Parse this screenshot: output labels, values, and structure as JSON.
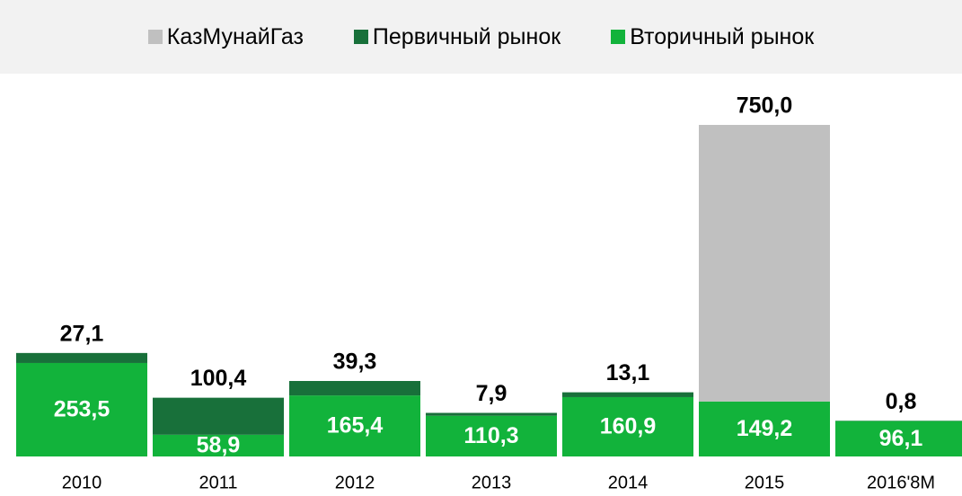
{
  "chart_data": {
    "type": "stacked-bar",
    "categories": [
      "2010",
      "2011",
      "2012",
      "2013",
      "2014",
      "2015",
      "2016'8M"
    ],
    "series": [
      {
        "name": "КазМунайГаз",
        "color": "#c0c0c0",
        "values": [
          null,
          null,
          null,
          null,
          null,
          750.0,
          null
        ],
        "value_labels": [
          null,
          null,
          null,
          null,
          null,
          "750,0",
          null
        ]
      },
      {
        "name": "Первичный рынок",
        "color": "#18703a",
        "values": [
          27.1,
          100.4,
          39.3,
          7.9,
          13.1,
          null,
          0.8
        ],
        "value_labels": [
          "27,1",
          "100,4",
          "39,3",
          "7,9",
          "13,1",
          null,
          "0,8"
        ]
      },
      {
        "name": "Вторичный рынок",
        "color": "#12b33b",
        "values": [
          253.5,
          58.9,
          165.4,
          110.3,
          160.9,
          149.2,
          96.1
        ],
        "value_labels": [
          "253,5",
          "58,9",
          "165,4",
          "110,3",
          "160,9",
          "149,2",
          "96,1"
        ]
      }
    ],
    "legend": "top"
  }
}
